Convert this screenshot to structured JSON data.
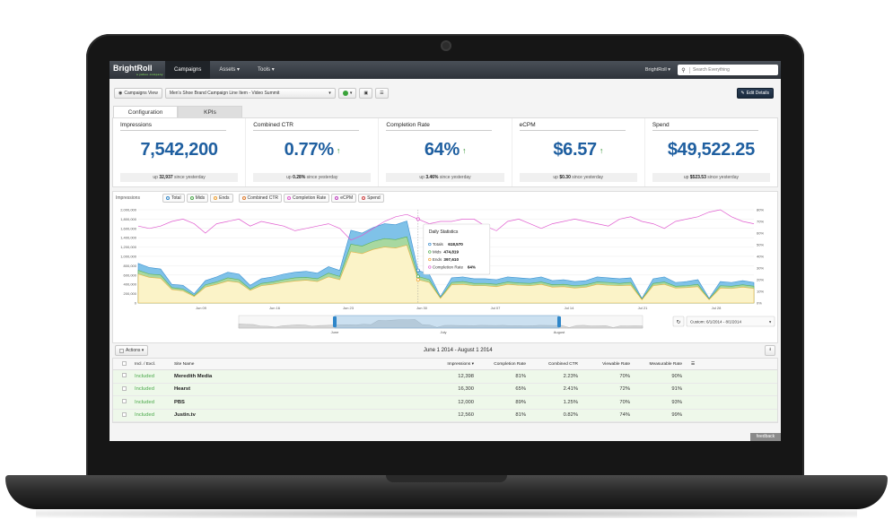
{
  "nav": {
    "logo": "BrightRoll",
    "logo_sub": "a yahoo company",
    "items": [
      "Campaigns",
      "Assets ▾",
      "Tools ▾"
    ],
    "account": "BrightRoll ▾",
    "search_placeholder": "Search Everything"
  },
  "toolbar": {
    "campaigns_view": "Campaigns View",
    "line_item": "Men's Shoe Brand Campaign Line Item - Video Summit",
    "edit_details": "Edit Details"
  },
  "tabs": [
    "Configuration",
    "KPIs"
  ],
  "kpis": [
    {
      "label": "Impressions",
      "value": "7,542,200",
      "arrow": "",
      "sub_prefix": "up ",
      "sub_value": "32,937",
      "sub_suffix": " since yesterday"
    },
    {
      "label": "Combined CTR",
      "value": "0.77%",
      "arrow": "↑",
      "sub_prefix": "up ",
      "sub_value": "0.28%",
      "sub_suffix": " since yesterday"
    },
    {
      "label": "Completion Rate",
      "value": "64%",
      "arrow": "↑",
      "sub_prefix": "up ",
      "sub_value": "3.46%",
      "sub_suffix": " since yesterday"
    },
    {
      "label": "eCPM",
      "value": "$6.57",
      "arrow": "↑",
      "sub_prefix": "up ",
      "sub_value": "$0.30",
      "sub_suffix": " since yesterday"
    },
    {
      "label": "Spend",
      "value": "$49,522.25",
      "arrow": "",
      "sub_prefix": "up ",
      "sub_value": "$523.53",
      "sub_suffix": " since yesterday"
    }
  ],
  "chart_controls": {
    "metric": "Impressions",
    "chips": [
      "Total",
      "Mids",
      "Ends",
      "Combined CTR",
      "Completion Rate",
      "eCPM",
      "Spend"
    ],
    "chip_colors": [
      "#2f86c9",
      "#4aa94a",
      "#f0a030",
      "#e07b2a",
      "#e05ccf",
      "#c040c0",
      "#d04040"
    ],
    "date_range_select": "Custom: 6/1/2014 - 8/1/2014"
  },
  "chart_data": {
    "type": "area",
    "x_ticks": [
      "Jun 09",
      "Jun 16",
      "Jun 23",
      "Jun 30",
      "Jul 07",
      "Jul 14",
      "Jul 21",
      "Jul 28"
    ],
    "y_ticks_left": [
      "0",
      "200,000",
      "400,000",
      "600,000",
      "800,000",
      "1,000,000",
      "1,200,000",
      "1,400,000",
      "1,600,000",
      "1,800,000",
      "2,000,000"
    ],
    "y_ticks_right": [
      "0%",
      "10%",
      "20%",
      "30%",
      "40%",
      "50%",
      "60%",
      "70%",
      "80%"
    ],
    "ylim_left": [
      0,
      2000000
    ],
    "ylim_right": [
      0,
      80
    ],
    "series": [
      {
        "name": "Total",
        "color": "#7fc2e8",
        "values": [
          850000,
          760000,
          730000,
          400000,
          380000,
          200000,
          480000,
          560000,
          660000,
          620000,
          380000,
          520000,
          560000,
          620000,
          660000,
          680000,
          640000,
          780000,
          700000,
          1560000,
          1500000,
          1620000,
          1700000,
          1680000,
          1760000,
          700000,
          620000,
          140000,
          540000,
          560000,
          520000,
          520000,
          500000,
          560000,
          540000,
          520000,
          560000,
          480000,
          500000,
          460000,
          480000,
          560000,
          540000,
          520000,
          540000,
          100000,
          520000,
          560000,
          440000,
          460000,
          500000,
          100000,
          460000,
          440000,
          480000,
          440000
        ]
      },
      {
        "name": "Mids",
        "color": "#a8d8a0",
        "values": [
          700000,
          620000,
          600000,
          330000,
          300000,
          160000,
          390000,
          450000,
          540000,
          500000,
          300000,
          420000,
          450000,
          500000,
          540000,
          550000,
          520000,
          640000,
          570000,
          1260000,
          1220000,
          1320000,
          1380000,
          1360000,
          1420000,
          570000,
          500000,
          110000,
          440000,
          460000,
          420000,
          420000,
          400000,
          450000,
          430000,
          420000,
          450000,
          390000,
          400000,
          370000,
          390000,
          450000,
          440000,
          420000,
          440000,
          80000,
          420000,
          450000,
          360000,
          370000,
          400000,
          80000,
          370000,
          360000,
          390000,
          360000
        ]
      },
      {
        "name": "Ends",
        "color": "#fbf3c8",
        "values": [
          620000,
          550000,
          530000,
          290000,
          260000,
          140000,
          340000,
          400000,
          470000,
          440000,
          270000,
          370000,
          400000,
          440000,
          470000,
          490000,
          460000,
          560000,
          500000,
          1100000,
          1060000,
          1150000,
          1200000,
          1180000,
          1240000,
          500000,
          440000,
          100000,
          390000,
          400000,
          370000,
          370000,
          350000,
          400000,
          380000,
          370000,
          400000,
          340000,
          350000,
          320000,
          340000,
          400000,
          380000,
          370000,
          380000,
          70000,
          370000,
          400000,
          320000,
          330000,
          350000,
          70000,
          320000,
          310000,
          340000,
          310000
        ]
      },
      {
        "name": "Completion Rate",
        "color": "#e05ccf",
        "values": [
          66,
          64,
          66,
          70,
          72,
          68,
          60,
          68,
          70,
          72,
          66,
          70,
          68,
          66,
          62,
          64,
          66,
          68,
          64,
          54,
          58,
          64,
          70,
          74,
          76,
          72,
          68,
          70,
          70,
          72,
          72,
          66,
          62,
          70,
          72,
          68,
          64,
          68,
          70,
          72,
          70,
          68,
          66,
          72,
          74,
          70,
          68,
          64,
          70,
          72,
          74,
          78,
          80,
          74,
          70,
          68
        ]
      }
    ],
    "tooltip": {
      "title": "Daily Statistics",
      "rows": [
        {
          "label": "Totals",
          "value": "618,570",
          "color": "#2f86c9"
        },
        {
          "label": "Mids",
          "value": "474,819",
          "color": "#4aa94a"
        },
        {
          "label": "Ends",
          "value": "397,610",
          "color": "#f0a030"
        },
        {
          "label": "Completion Rate",
          "value": "64%",
          "color": "#e05ccf"
        }
      ]
    },
    "navigator_labels": [
      "June",
      "July",
      "August"
    ]
  },
  "list": {
    "actions": "Actions ▾",
    "date_range": "June 1 2014 - August 1 2014",
    "columns": [
      "Incl. / Excl.",
      "Site Name",
      "Impressions ▾",
      "Completion Rate",
      "Combined CTR",
      "Viewable Rate",
      "Measurable Rate"
    ],
    "rows": [
      {
        "incl": "Included",
        "site": "Meredith Media",
        "impressions": "12,398",
        "completion": "81%",
        "ctr": "2.23%",
        "viewable": "70%",
        "measurable": "90%"
      },
      {
        "incl": "Included",
        "site": "Hearst",
        "impressions": "16,300",
        "completion": "65%",
        "ctr": "2.41%",
        "viewable": "72%",
        "measurable": "91%"
      },
      {
        "incl": "Included",
        "site": "PBS",
        "impressions": "12,000",
        "completion": "89%",
        "ctr": "1.25%",
        "viewable": "70%",
        "measurable": "93%"
      },
      {
        "incl": "Included",
        "site": "Justin.tv",
        "impressions": "12,560",
        "completion": "81%",
        "ctr": "0.82%",
        "viewable": "74%",
        "measurable": "99%"
      }
    ]
  },
  "feedback": "feedback"
}
